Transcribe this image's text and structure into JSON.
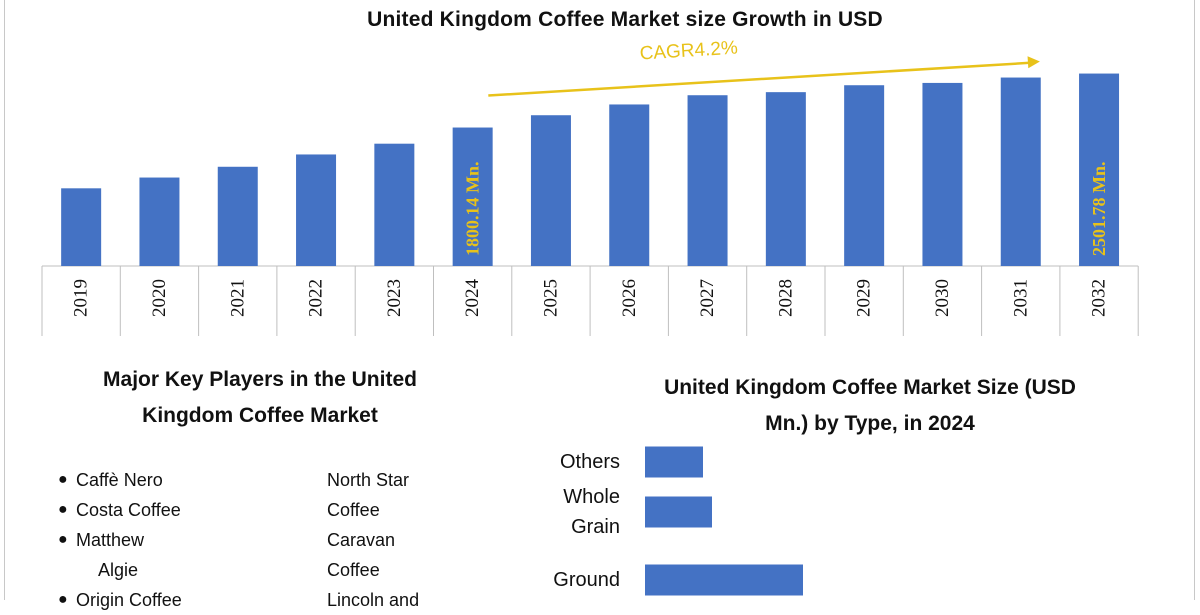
{
  "chart_data": [
    {
      "type": "bar",
      "title": "United Kingdom Coffee Market size Growth in USD",
      "categories": [
        "2019",
        "2020",
        "2021",
        "2022",
        "2023",
        "2024",
        "2025",
        "2026",
        "2027",
        "2028",
        "2029",
        "2030",
        "2031",
        "2032"
      ],
      "values": [
        1010,
        1150,
        1290,
        1450,
        1590,
        1800.14,
        1960,
        2100,
        2220,
        2260,
        2350,
        2380,
        2450,
        2501.78
      ],
      "ylim": [
        0,
        2600
      ],
      "bar_color": "#4472c4",
      "annotations": [
        {
          "category": "2024",
          "text": "1800.14 Mn.",
          "color": "#e8c21a"
        },
        {
          "category": "2032",
          "text": "2501.78 Mn.",
          "color": "#e8c21a"
        }
      ],
      "cagr_label": "CAGR4.2%",
      "arrow_color": "#e8c21a",
      "grid": false
    },
    {
      "type": "bar",
      "orientation": "horizontal",
      "title": "United Kingdom Coffee Market Size (USD Mn.) by Type, in 2024",
      "categories": [
        "Others",
        "Whole Grain",
        "Ground"
      ],
      "values": [
        58,
        67,
        158
      ],
      "bar_color": "#4472c4",
      "grid": false
    }
  ],
  "players": {
    "title": "Major Key Players in the United Kingdom Coffee Market",
    "title_line1": "Major Key Players in the United",
    "title_line2": "Kingdom Coffee Market",
    "column1": [
      {
        "text": "Caffè Nero"
      },
      {
        "text": "Costa Coffee"
      },
      {
        "text": "Matthew",
        "cont": "Algie"
      },
      {
        "text": "Origin Coffee"
      }
    ],
    "column2_lines": [
      "North Star",
      "Coffee",
      "Caravan",
      "Coffee",
      "Lincoln and"
    ]
  },
  "type_chart": {
    "title_line1": "United Kingdom Coffee Market Size (USD",
    "title_line2": "Mn.) by Type, in 2024",
    "labels": [
      [
        "Others"
      ],
      [
        "Whole",
        "Grain"
      ],
      [
        "Ground"
      ]
    ]
  },
  "colors": {
    "bar": "#4472c4",
    "accent": "#e8c21a",
    "axis": "#bfbfbf"
  }
}
